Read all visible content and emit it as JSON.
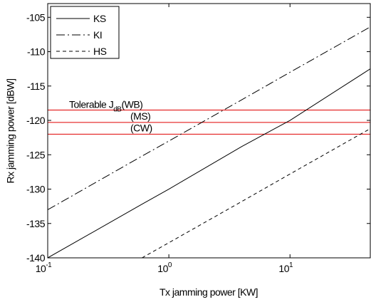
{
  "chart_data": {
    "type": "line",
    "xlabel": "Tx jamming power [KW]",
    "ylabel": "Rx jamming power [dBW]",
    "xscale": "log",
    "xlim": [
      0.1,
      46
    ],
    "ylim": [
      -140,
      -103
    ],
    "xticks": [
      {
        "value": 0.1,
        "label": "10",
        "exponent": "-1"
      },
      {
        "value": 1,
        "label": "10",
        "exponent": "0"
      },
      {
        "value": 10,
        "label": "10",
        "exponent": "1"
      }
    ],
    "yticks": [
      -140,
      -135,
      -130,
      -125,
      -120,
      -115,
      -110,
      -105
    ],
    "x": [
      0.1,
      0.6,
      1,
      4,
      10,
      46
    ],
    "series": [
      {
        "name": "KS",
        "color": "#000000",
        "dash": "solid",
        "values": [
          -140,
          -132.2,
          -130,
          -123.8,
          -120,
          -112.5
        ]
      },
      {
        "name": "KI",
        "color": "#000000",
        "dash": "dashdot",
        "values": [
          -133,
          -125.2,
          -123,
          -117,
          -113,
          -106.4
        ]
      },
      {
        "name": "HS",
        "color": "#000000",
        "dash": "dashed",
        "values": [
          null,
          -140,
          -137.8,
          -131.8,
          -127.8,
          -121.2
        ]
      }
    ],
    "legend": "upper left",
    "hlines": [
      {
        "value": -118.5,
        "color": "#e00000",
        "prefix": "Tolerable J",
        "sub": "dB",
        "label": "(WB)"
      },
      {
        "value": -120.3,
        "color": "#e00000",
        "label": "(MS)"
      },
      {
        "value": -122,
        "color": "#e00000",
        "label": "(CW)"
      }
    ]
  }
}
